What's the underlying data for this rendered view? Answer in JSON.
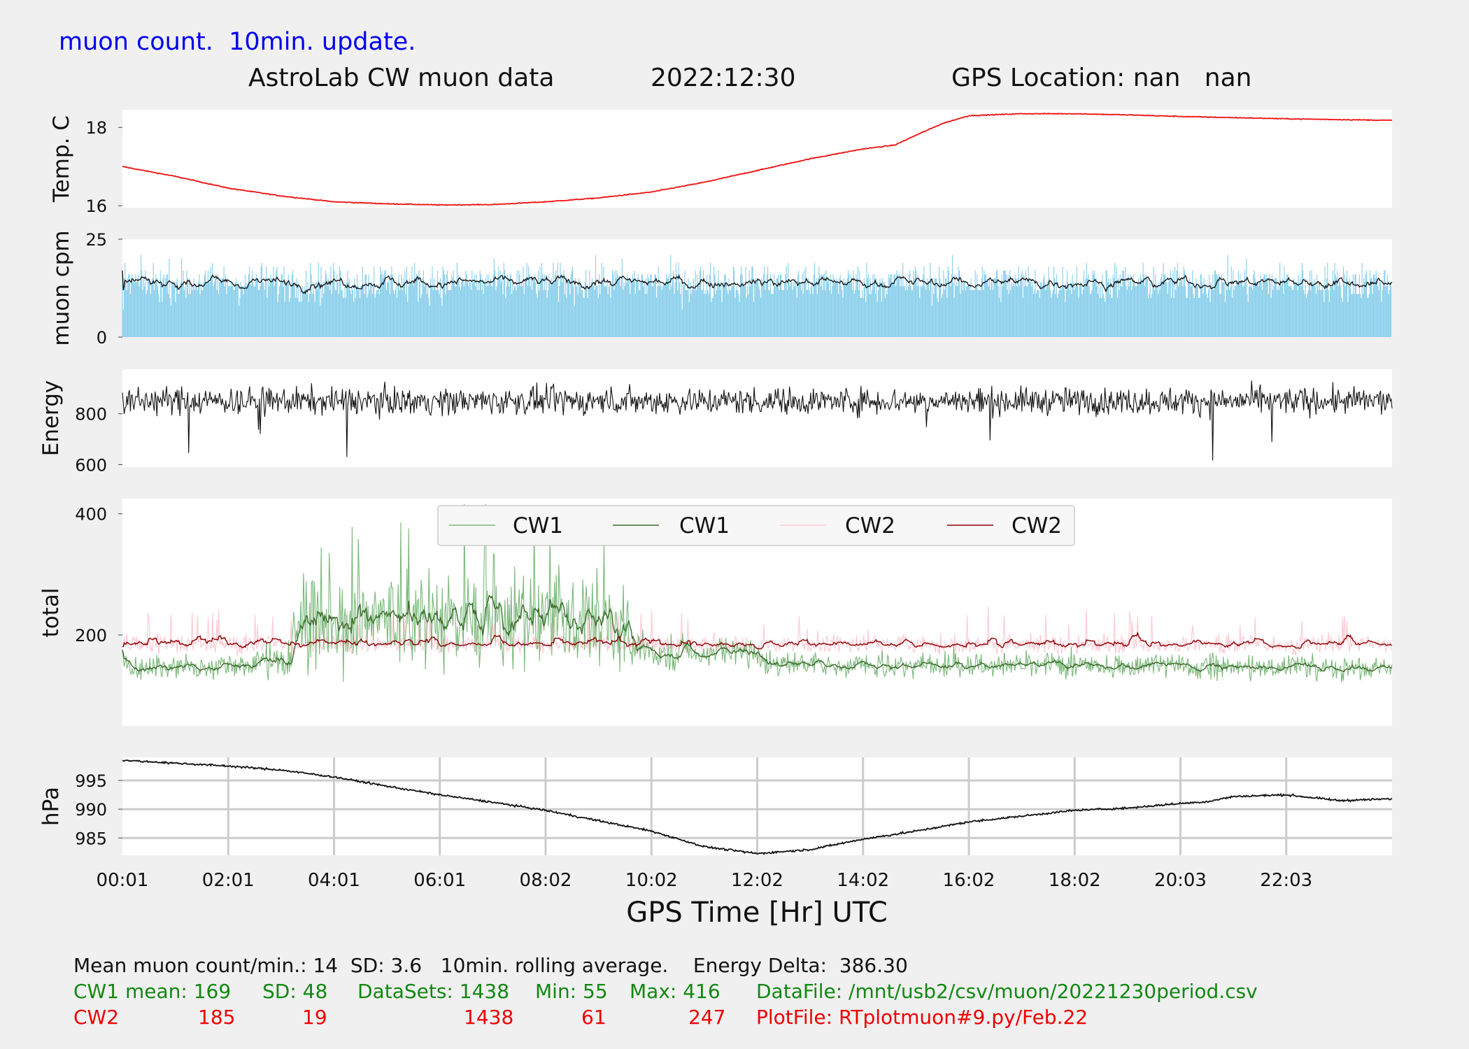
{
  "header": {
    "note": "muon count.  10min. update.",
    "title": "AstroLab CW muon data",
    "date": "2022:12:30",
    "gps_location": "GPS Location: nan   nan"
  },
  "x_axis": {
    "label": "GPS Time  [Hr] UTC",
    "ticks": [
      "00:01",
      "02:01",
      "04:01",
      "06:01",
      "08:02",
      "10:02",
      "12:02",
      "14:02",
      "16:02",
      "18:02",
      "20:03",
      "22:03"
    ]
  },
  "colors": {
    "temperature": "#ee1111",
    "muon_bars": "#87ceeb",
    "muon_avg": "#111111",
    "energy": "#111111",
    "cw1_raw": "#7ab87a",
    "cw1_avg": "#3b6b2a",
    "cw2_raw": "#ffc8d2",
    "cw2_avg": "#8b0000",
    "pressure": "#111111"
  },
  "chart_data": [
    {
      "type": "line",
      "panel": "temperature",
      "ylabel": "Temp. C",
      "yticks": [
        16,
        18
      ],
      "ylim": [
        15.95,
        18.45
      ],
      "series": [
        {
          "x": [
            0,
            1,
            2,
            3,
            4,
            5,
            6,
            7,
            8,
            9,
            10,
            11,
            12,
            13,
            14,
            14.6,
            15,
            15.5,
            16,
            17,
            18,
            19,
            20,
            21,
            22,
            23,
            24
          ],
          "values": [
            17.0,
            16.75,
            16.45,
            16.25,
            16.1,
            16.05,
            16.02,
            16.03,
            16.1,
            16.2,
            16.35,
            16.6,
            16.9,
            17.2,
            17.45,
            17.55,
            17.8,
            18.1,
            18.3,
            18.35,
            18.35,
            18.32,
            18.28,
            18.25,
            18.22,
            18.2,
            18.18
          ]
        }
      ]
    },
    {
      "type": "bar",
      "panel": "muon_cpm",
      "ylabel": "muon cpm",
      "yticks": [
        0,
        25
      ],
      "ylim": [
        0,
        25
      ],
      "mean": 14,
      "sd": 3.6,
      "samples": 1438
    },
    {
      "type": "line",
      "panel": "energy",
      "ylabel": "Energy",
      "yticks": [
        600,
        800
      ],
      "ylim": [
        590,
        975
      ],
      "mean": 850
    },
    {
      "type": "line",
      "panel": "total",
      "ylabel": "total",
      "yticks": [
        200,
        400
      ],
      "ylim": [
        50,
        425
      ],
      "legend": [
        "CW1",
        "CW1",
        "CW2",
        "CW2"
      ],
      "legend_location": "upper center",
      "cw1": {
        "mean": 169,
        "sd": 48,
        "min": 55,
        "max": 416,
        "datasets": 1438
      },
      "cw2": {
        "mean": 185,
        "sd": 19,
        "min": 61,
        "max": 247,
        "datasets": 1438
      }
    },
    {
      "type": "line",
      "panel": "pressure",
      "ylabel": "hPa",
      "yticks": [
        985,
        990,
        995
      ],
      "ylim": [
        982,
        999
      ],
      "grid": true,
      "series": [
        {
          "x": [
            0,
            1,
            2,
            3,
            4,
            5,
            6,
            7,
            8,
            9,
            10,
            11,
            12,
            13,
            14,
            15,
            16,
            17,
            18,
            19,
            20,
            20.5,
            21,
            22,
            23,
            24
          ],
          "values": [
            998.5,
            998,
            997.5,
            996.8,
            995.6,
            994,
            992.5,
            991.2,
            989.8,
            988,
            986.2,
            983.5,
            982.3,
            983,
            984.8,
            986.2,
            987.8,
            988.8,
            989.8,
            990.2,
            991,
            991.3,
            992.2,
            992.5,
            991.5,
            991.8
          ]
        }
      ]
    }
  ],
  "stats": {
    "line1": "Mean muon count/min.: 14  SD: 3.6   10min. rolling average.    Energy Delta:  386.30",
    "cw1": {
      "label": "CW1 mean: 169",
      "sd": "SD: 48",
      "datasets": "DataSets: 1438",
      "min": "Min: 55",
      "max": "Max: 416",
      "file": "DataFile: /mnt/usb2/csv/muon/20221230period.csv"
    },
    "cw2": {
      "label": "CW2",
      "mean": "185",
      "sd": "19",
      "datasets": "1438",
      "min": "61",
      "max": "247",
      "file": "PlotFile: RTplotmuon#9.py/Feb.22"
    }
  }
}
